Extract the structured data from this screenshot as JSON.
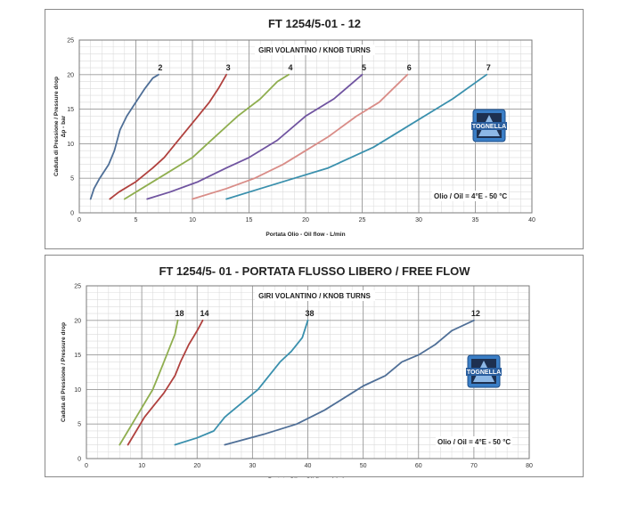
{
  "chart_data": [
    {
      "type": "line",
      "title": "FT 1254/5-01  - 12",
      "subtitle": "GIRI VOLANTINO / KNOB TURNS",
      "xlabel": "Portata Olio - Oil flow - L/min",
      "ylabel": "Caduta di Pressione / Pressure drop",
      "ylabel2": "Δp - bar",
      "xlim": [
        0,
        40
      ],
      "ylim": [
        0,
        25
      ],
      "xticks": [
        0,
        5,
        10,
        15,
        20,
        25,
        30,
        35,
        40
      ],
      "yticks": [
        0,
        5,
        10,
        15,
        20,
        25
      ],
      "grid": true,
      "note": "Olio / Oil = 4°E - 50 °C",
      "logo": "TOGNELLA",
      "series": [
        {
          "name": "2",
          "color": "#4f6f97",
          "x": [
            1,
            1.3,
            1.8,
            2.6,
            3.1,
            3.6,
            4.2,
            5,
            5.8,
            6.5,
            7
          ],
          "y": [
            2,
            3.5,
            5,
            7,
            9,
            12,
            14,
            16,
            18,
            19.5,
            20
          ]
        },
        {
          "name": "3",
          "color": "#b0413e",
          "x": [
            2.7,
            3.5,
            5,
            6.5,
            7.5,
            8.5,
            9.5,
            10.5,
            11.5,
            12.3,
            13
          ],
          "y": [
            2,
            3,
            4.5,
            6.5,
            8,
            10,
            12,
            14,
            16,
            18,
            20
          ]
        },
        {
          "name": "4",
          "color": "#8fae4f",
          "x": [
            4,
            5.5,
            7.5,
            10,
            12,
            14,
            16,
            17.5,
            18.5
          ],
          "y": [
            2,
            3.5,
            5.5,
            8,
            11,
            14,
            16.5,
            19,
            20
          ]
        },
        {
          "name": "5",
          "color": "#7054a0",
          "x": [
            6,
            8,
            10.5,
            13,
            15,
            17.5,
            20,
            22.5,
            25
          ],
          "y": [
            2,
            3,
            4.5,
            6.5,
            8,
            10.5,
            14,
            16.5,
            20
          ]
        },
        {
          "name": "6",
          "color": "#d98d88",
          "x": [
            10,
            13,
            15.5,
            18,
            20,
            22,
            24.5,
            26.5,
            29
          ],
          "y": [
            2,
            3.5,
            5,
            7,
            9,
            11,
            14,
            16,
            20
          ]
        },
        {
          "name": "7",
          "color": "#3a90ad",
          "x": [
            13,
            16,
            19,
            22,
            24,
            26,
            28,
            31,
            33,
            36
          ],
          "y": [
            2,
            3.5,
            5,
            6.5,
            8,
            9.5,
            11.5,
            14.5,
            16.5,
            20
          ]
        }
      ]
    },
    {
      "type": "line",
      "title": "FT 1254/5- 01  - PORTATA FLUSSO LIBERO / FREE FLOW",
      "subtitle": "GIRI VOLANTINO / KNOB TURNS",
      "xlabel": "Portata Olio - Oil flow - L/min",
      "ylabel": "Caduta di Pressione / Pressure drop",
      "ylabel2": "",
      "xlim": [
        0,
        80
      ],
      "ylim": [
        0,
        25
      ],
      "xticks": [
        0,
        10,
        20,
        30,
        40,
        50,
        60,
        70,
        80
      ],
      "yticks": [
        0,
        5,
        10,
        15,
        20,
        25
      ],
      "grid": true,
      "note": "Olio / Oil = 4°E - 50 °C",
      "logo": "TOGNELLA",
      "series": [
        {
          "name": "18",
          "color": "#8fae4f",
          "x": [
            6,
            7.5,
            9,
            10.5,
            12,
            13,
            14,
            15,
            16,
            16.5
          ],
          "y": [
            2,
            4,
            6,
            8,
            10,
            12,
            14,
            16,
            18,
            20
          ]
        },
        {
          "name": "14",
          "color": "#b0413e",
          "x": [
            7.5,
            9,
            10.5,
            12,
            14,
            16,
            17,
            18.5,
            20,
            21
          ],
          "y": [
            2,
            4,
            6,
            7.5,
            9.5,
            12,
            14,
            16.5,
            18.5,
            20
          ]
        },
        {
          "name": "38",
          "color": "#3a90ad",
          "x": [
            16,
            20,
            23,
            25,
            28,
            31,
            33,
            35,
            37,
            39,
            40
          ],
          "y": [
            2,
            3,
            4,
            6,
            8,
            10,
            12,
            14,
            15.5,
            17.5,
            20
          ]
        },
        {
          "name": "12",
          "color": "#4f6f97",
          "x": [
            25,
            32,
            38,
            43,
            48,
            50,
            54,
            57,
            60,
            63,
            66,
            70
          ],
          "y": [
            2,
            3.5,
            5,
            7,
            9.5,
            10.5,
            12,
            14,
            15,
            16.5,
            18.5,
            20
          ]
        }
      ]
    }
  ]
}
